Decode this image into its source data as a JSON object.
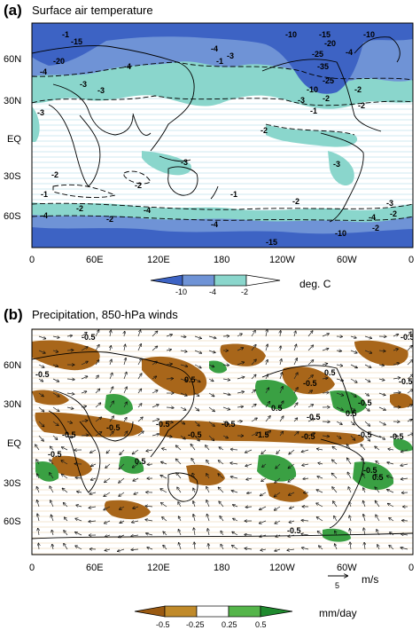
{
  "panels": [
    {
      "letter": "(a)",
      "title": "Surface air temperature",
      "colorbar": {
        "ticks": [
          "-10",
          "-4",
          "-2"
        ],
        "unit": "deg. C",
        "colors": [
          "#3d63c4",
          "#6f93d6",
          "#8ad6cc",
          "#ffffff"
        ]
      }
    },
    {
      "letter": "(b)",
      "title": "Precipitation, 850-hPa winds",
      "colorbar": {
        "ticks": [
          "-0.5",
          "-0.25",
          "0.25",
          "0.5"
        ],
        "unit": "mm/day",
        "colors": [
          "#9a5a12",
          "#c08a2a",
          "#ffffff",
          "#55b54a",
          "#1f8a2e"
        ]
      },
      "reference_vector": {
        "value": "5",
        "unit": "m/s"
      }
    }
  ],
  "axes": {
    "lat_ticks": [
      "60N",
      "30N",
      "EQ",
      "30S",
      "60S"
    ],
    "lon_ticks": [
      "0",
      "60E",
      "120E",
      "180",
      "120W",
      "60W",
      "0"
    ]
  },
  "chart_data": [
    {
      "type": "heatmap",
      "title": "Surface air temperature",
      "unit": "deg. C",
      "contour_levels": [
        -35,
        -25,
        -20,
        -15,
        -10,
        -4,
        -3,
        -2,
        -1,
        0
      ],
      "shading_levels": [
        -10,
        -4,
        -2
      ],
      "contour_labels": [
        "-1",
        "-15",
        "-20",
        "-4",
        "-3",
        "-4",
        "-3",
        "-4",
        "-1",
        "-3",
        "-10",
        "-15",
        "-20",
        "-25",
        "-35",
        "-10",
        "-4",
        "-25",
        "-10",
        "-2",
        "-3",
        "-1",
        "-2",
        "-2",
        "-3",
        "-2",
        "-1",
        "-2",
        "-2",
        "-3",
        "-1",
        "-2",
        "-3",
        "-4",
        "-4",
        "-2",
        "-3",
        "-2",
        "-4",
        "-10",
        "-2",
        "-4",
        "-2",
        "-15"
      ],
      "xlabel": "",
      "ylabel": ""
    },
    {
      "type": "heatmap",
      "title": "Precipitation, 850-hPa winds",
      "unit": "mm/day",
      "shading_levels": [
        -0.5,
        -0.25,
        0.25,
        0.5
      ],
      "contour_labels": [
        "-0.5",
        "-0.5",
        "-0.5",
        "-0.5",
        "0.5",
        "0.5",
        "-0.5",
        "0.5",
        "-0.5",
        "0.5",
        "-0.5",
        "-1.5",
        "-0.5",
        "-0.5",
        "-0.5",
        "-0.5",
        "-0.5",
        "-0.5",
        "-0.5",
        "0.5",
        "0.5",
        "-0.5",
        "-0.5",
        "-0.5",
        "-0.5"
      ],
      "reference_vector": {
        "value": 5,
        "unit": "m/s"
      },
      "xlabel": "",
      "ylabel": ""
    }
  ]
}
